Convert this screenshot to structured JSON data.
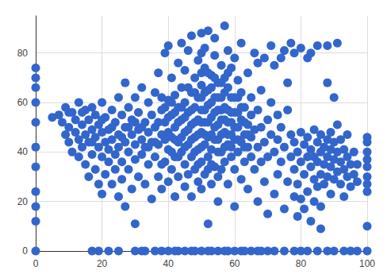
{
  "chart_data": {
    "type": "scatter",
    "color": "#3366cc",
    "marker": "circle",
    "grid": true,
    "xlim": [
      0,
      100
    ],
    "xticks": [
      0,
      20,
      40,
      60,
      80,
      100
    ],
    "ylim": [
      0,
      95
    ],
    "yticks": [
      0,
      20,
      40,
      60,
      80
    ],
    "x": [
      5,
      7,
      8,
      9,
      9,
      10,
      10,
      11,
      11,
      12,
      12,
      13,
      13,
      13,
      14,
      14,
      15,
      15,
      15,
      16,
      16,
      16,
      17,
      17,
      17,
      18,
      18,
      18,
      19,
      19,
      19,
      20,
      20,
      20,
      20,
      21,
      21,
      21,
      22,
      22,
      22,
      23,
      23,
      23,
      24,
      24,
      24,
      25,
      25,
      25,
      25,
      26,
      26,
      26,
      27,
      27,
      27,
      27,
      28,
      28,
      28,
      29,
      29,
      29,
      30,
      30,
      30,
      30,
      31,
      31,
      31,
      32,
      32,
      32,
      33,
      33,
      33,
      34,
      34,
      34,
      35,
      35,
      35,
      10,
      14,
      17,
      20,
      23,
      26,
      28,
      30,
      32,
      34,
      36,
      36,
      36,
      37,
      37,
      37,
      38,
      38,
      38,
      39,
      39,
      39,
      40,
      40,
      40,
      40,
      41,
      41,
      41,
      41,
      42,
      42,
      42,
      42,
      43,
      43,
      43,
      43,
      44,
      44,
      44,
      44,
      45,
      45,
      45,
      45,
      45,
      46,
      46,
      46,
      46,
      47,
      47,
      47,
      47,
      47,
      48,
      48,
      48,
      48,
      49,
      49,
      49,
      49,
      49,
      50,
      50,
      50,
      50,
      50,
      50,
      51,
      51,
      51,
      51,
      51,
      52,
      52,
      52,
      52,
      52,
      52,
      53,
      53,
      53,
      53,
      54,
      54,
      54,
      54,
      54,
      55,
      55,
      55,
      55,
      55,
      56,
      56,
      56,
      56,
      57,
      57,
      57,
      57,
      57,
      58,
      58,
      58,
      58,
      58,
      59,
      59,
      59,
      59,
      60,
      60,
      60,
      60,
      60,
      61,
      61,
      61,
      61,
      62,
      62,
      62,
      62,
      63,
      63,
      63,
      64,
      64,
      64,
      64,
      65,
      65,
      65,
      65,
      66,
      66,
      66,
      38,
      39,
      40,
      41,
      42,
      43,
      44,
      45,
      46,
      46,
      47,
      47,
      48,
      48,
      48,
      49,
      49,
      50,
      50,
      50,
      50,
      50,
      51,
      51,
      51,
      52,
      52,
      52,
      53,
      53,
      53,
      53,
      54,
      54,
      54,
      55,
      55,
      55,
      56,
      56,
      56,
      56,
      57,
      57,
      57,
      58,
      58,
      58,
      59,
      59,
      59,
      60,
      60,
      61,
      61,
      62,
      62,
      63,
      63,
      64,
      44,
      45,
      43,
      42,
      41,
      40,
      39,
      37,
      36,
      38,
      67,
      67,
      67,
      67,
      68,
      68,
      68,
      69,
      69,
      69,
      70,
      70,
      70,
      71,
      71,
      71,
      72,
      72,
      72,
      73,
      73,
      73,
      74,
      74,
      74,
      75,
      75,
      75,
      76,
      76,
      76,
      77,
      77,
      77,
      78,
      78,
      78,
      78,
      79,
      79,
      79,
      80,
      80,
      80,
      80,
      81,
      81,
      81,
      82,
      82,
      82,
      82,
      83,
      83,
      83,
      83,
      84,
      84,
      84,
      84,
      85,
      85,
      85,
      85,
      86,
      86,
      86,
      86,
      86,
      87,
      87,
      87,
      88,
      88,
      88,
      88,
      88,
      89,
      89,
      89,
      89,
      90,
      90,
      90,
      90,
      91,
      91,
      91,
      91,
      92,
      92,
      92,
      93,
      93,
      93,
      94,
      94,
      94,
      95,
      95,
      96,
      96,
      97,
      97,
      0,
      0,
      0,
      0,
      0,
      0,
      0,
      0,
      0,
      0,
      0,
      100,
      100,
      100,
      100,
      100,
      100,
      100,
      100,
      100,
      100,
      17,
      19,
      22,
      25,
      30,
      32,
      33,
      36,
      38,
      40,
      42,
      43,
      45,
      47,
      48,
      50,
      52,
      53,
      55,
      57,
      58,
      60,
      62,
      63,
      65,
      67,
      68,
      70,
      72,
      75,
      78,
      80,
      82,
      85,
      88,
      90,
      93,
      95,
      97
    ],
    "values": [
      54,
      55,
      52,
      58,
      47,
      50,
      44,
      56,
      40,
      53,
      48,
      60,
      45,
      38,
      51,
      42,
      57,
      35,
      47,
      53,
      44,
      30,
      49,
      39,
      58,
      55,
      46,
      33,
      42,
      51,
      27,
      48,
      38,
      60,
      23,
      44,
      54,
      31,
      49,
      36,
      41,
      57,
      45,
      27,
      52,
      39,
      33,
      47,
      42,
      62,
      22,
      55,
      36,
      29,
      50,
      44,
      68,
      18,
      40,
      58,
      33,
      47,
      25,
      53,
      43,
      37,
      62,
      11,
      49,
      30,
      56,
      45,
      39,
      66,
      52,
      27,
      42,
      48,
      35,
      60,
      44,
      21,
      55,
      56,
      56,
      44,
      53,
      50,
      46,
      50,
      52,
      50,
      42,
      38,
      50,
      64,
      43,
      72,
      30,
      57,
      47,
      25,
      52,
      36,
      80,
      61,
      41,
      28,
      83,
      55,
      46,
      33,
      70,
      50,
      63,
      38,
      22,
      58,
      44,
      76,
      30,
      53,
      66,
      40,
      84,
      48,
      60,
      35,
      26,
      73,
      56,
      43,
      81,
      31,
      51,
      64,
      38,
      87,
      22,
      58,
      46,
      70,
      33,
      53,
      77,
      41,
      28,
      62,
      48,
      67,
      88,
      36,
      57,
      25,
      52,
      74,
      43,
      31,
      82,
      59,
      46,
      65,
      38,
      89,
      11,
      54,
      71,
      41,
      27,
      50,
      62,
      79,
      34,
      86,
      57,
      45,
      68,
      30,
      20,
      53,
      75,
      40,
      62,
      48,
      91,
      36,
      58,
      70,
      52,
      43,
      66,
      27,
      81,
      56,
      38,
      74,
      47,
      50,
      62,
      33,
      78,
      18,
      45,
      56,
      69,
      40,
      53,
      29,
      64,
      84,
      47,
      58,
      36,
      51,
      42,
      72,
      25,
      55,
      46,
      38,
      62,
      49,
      33,
      80,
      62,
      45,
      54,
      60,
      45,
      52,
      58,
      42,
      49,
      66,
      45,
      57,
      52,
      40,
      64,
      47,
      35,
      42,
      52,
      62,
      72,
      80,
      47,
      57,
      64,
      52,
      72,
      33,
      47,
      60,
      66,
      35,
      45,
      56,
      70,
      51,
      62,
      40,
      47,
      57,
      68,
      33,
      53,
      42,
      64,
      47,
      57,
      72,
      52,
      42,
      62,
      45,
      56,
      50,
      62,
      44,
      58,
      52,
      42,
      47,
      46,
      54,
      38,
      56,
      40,
      48,
      58,
      52,
      44,
      35,
      42,
      57,
      20,
      76,
      50,
      36,
      65,
      44,
      28,
      78,
      53,
      15,
      38,
      47,
      83,
      60,
      40,
      23,
      75,
      45,
      55,
      31,
      78,
      36,
      50,
      42,
      17,
      81,
      28,
      57,
      68,
      47,
      38,
      84,
      80,
      33,
      22,
      44,
      27,
      40,
      14,
      36,
      48,
      82,
      21,
      31,
      43,
      17,
      38,
      46,
      24,
      78,
      34,
      41,
      80,
      12,
      29,
      38,
      49,
      20,
      36,
      44,
      26,
      83,
      31,
      40,
      47,
      9,
      18,
      35,
      42,
      27,
      38,
      30,
      45,
      83,
      68,
      34,
      41,
      23,
      48,
      37,
      29,
      44,
      62,
      32,
      40,
      84,
      51,
      36,
      27,
      45,
      33,
      41,
      22,
      38,
      30,
      47,
      35,
      26,
      40,
      31,
      35,
      28,
      0,
      12,
      18,
      24,
      34,
      42,
      52,
      60,
      66,
      70,
      74,
      0,
      10,
      24,
      27,
      30,
      34,
      37,
      40,
      44,
      46,
      0,
      0,
      0,
      0,
      0,
      0,
      0,
      0,
      0,
      0,
      0,
      0,
      0,
      0,
      0,
      0,
      0,
      0,
      0,
      0,
      0,
      0,
      0,
      0,
      0,
      0,
      0,
      0,
      0,
      0,
      0,
      0,
      0,
      0,
      0,
      0,
      0,
      0,
      0
    ]
  }
}
